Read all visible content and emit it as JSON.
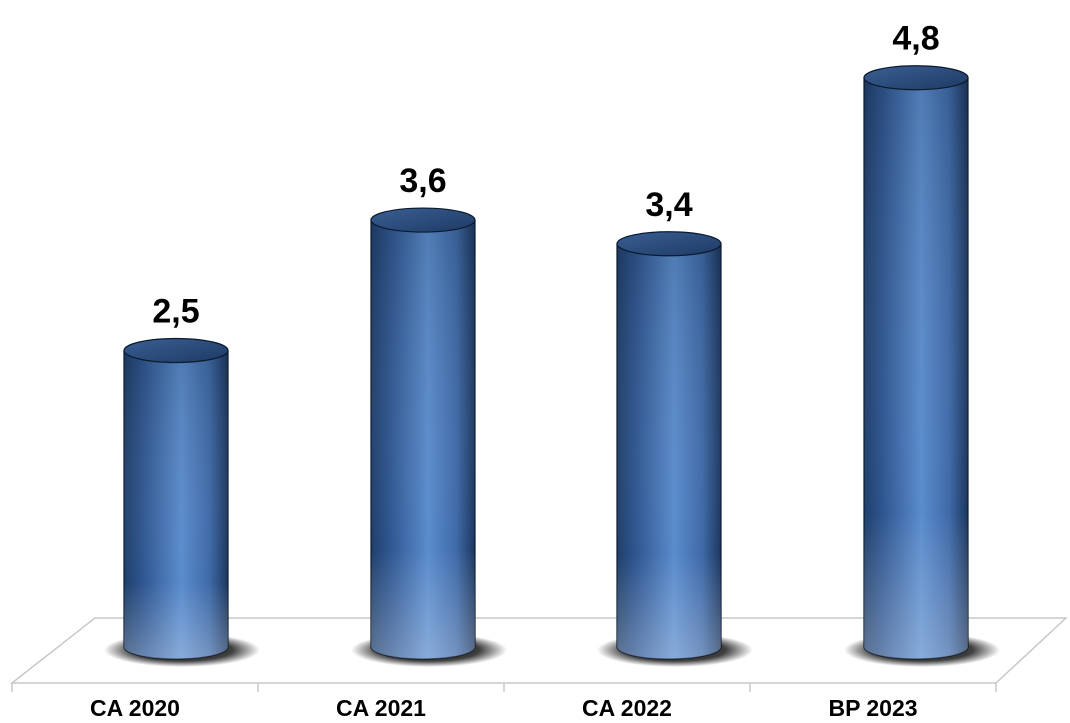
{
  "chart_data": {
    "type": "bar",
    "categories": [
      "CA 2020",
      "CA 2021",
      "CA 2022",
      "BP 2023"
    ],
    "values": [
      2.5,
      3.6,
      3.4,
      4.8
    ],
    "value_labels": [
      "2,5",
      "3,6",
      "3,4",
      "4,8"
    ],
    "title": "",
    "xlabel": "",
    "ylabel": "",
    "ylim": [
      0,
      5.3
    ],
    "grid": false,
    "legend": "none",
    "style": "3d-cylinder",
    "colors": {
      "bar_light": "#8fb3e0",
      "bar_mid": "#4f7fc2",
      "bar_dark": "#1f3f6b",
      "top_cap": "#2d4f80",
      "floor_line": "#c8c8c8",
      "shadow": "#000000"
    }
  }
}
